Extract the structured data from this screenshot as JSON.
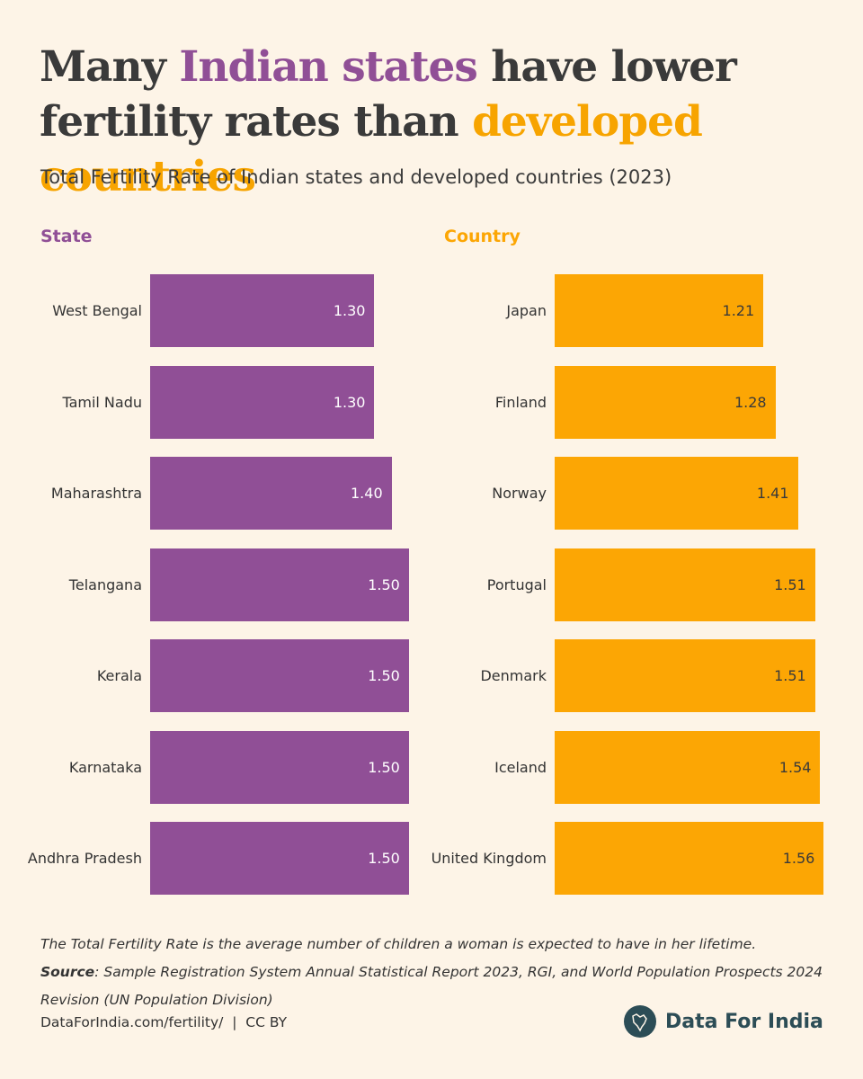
{
  "title_parts": [
    {
      "text": "Many ",
      "color": "#3a3a3a"
    },
    {
      "text": "Indian states",
      "color": "#904f96"
    },
    {
      "text": " have lower fertility rates than ",
      "color": "#3a3a3a"
    },
    {
      "text": "developed countries",
      "color": "#f7a400"
    }
  ],
  "subtitle": "Total Fertility Rate of Indian states and developed countries (2023)",
  "chart_data": [
    {
      "type": "bar",
      "title": "State",
      "color": "#904f96",
      "label_color": "#ffffff",
      "xlim": [
        0,
        1.6
      ],
      "categories": [
        "West Bengal",
        "Tamil Nadu",
        "Maharashtra",
        "Telangana",
        "Kerala",
        "Karnataka",
        "Andhra Pradesh"
      ],
      "values": [
        1.3,
        1.3,
        1.4,
        1.5,
        1.5,
        1.5,
        1.5
      ],
      "value_labels": [
        "1.30",
        "1.30",
        "1.40",
        "1.50",
        "1.50",
        "1.50",
        "1.50"
      ]
    },
    {
      "type": "bar",
      "title": "Country",
      "color": "#fca604",
      "label_color": "#3a3a3a",
      "xlim": [
        0,
        1.6
      ],
      "categories": [
        "Japan",
        "Finland",
        "Norway",
        "Portugal",
        "Denmark",
        "Iceland",
        "United Kingdom"
      ],
      "values": [
        1.21,
        1.28,
        1.41,
        1.51,
        1.51,
        1.54,
        1.56
      ]
    }
  ],
  "note": "The Total Fertility Rate is the average number of children a woman is expected to have in her lifetime.",
  "source_label": "Source",
  "source_text": ": Sample Registration System Annual Statistical Report 2023, RGI, and World Population Prospects 2024 Revision (UN Population Division)",
  "footer": "DataForIndia.com/fertility/  |  CC BY",
  "brand": "Data For India"
}
